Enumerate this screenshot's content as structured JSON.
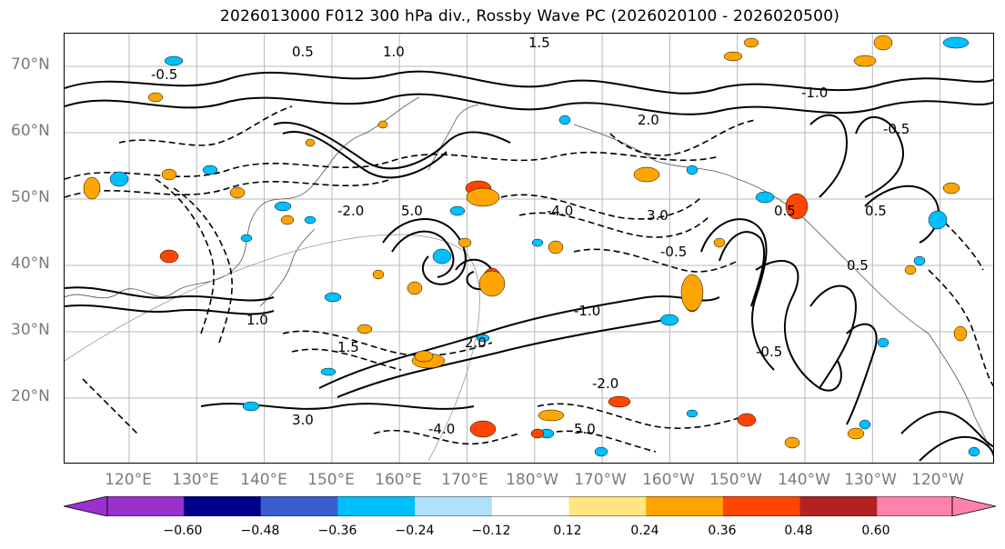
{
  "title": "2026013000 F012 300 hPa div., Rossby Wave PC (2026020100 - 2026020500)",
  "latitude_labels": [
    "70°N",
    "60°N",
    "50°N",
    "40°N",
    "30°N",
    "20°N"
  ],
  "longitude_labels": [
    "120°E",
    "130°E",
    "140°E",
    "150°E",
    "160°E",
    "170°E",
    "180°W",
    "170°W",
    "160°W",
    "150°W",
    "140°W",
    "130°W",
    "120°W"
  ],
  "colorbar": {
    "tick_labels": [
      "−0.60",
      "−0.48",
      "−0.36",
      "−0.24",
      "−0.12",
      "0.12",
      "0.24",
      "0.36",
      "0.48",
      "0.60"
    ],
    "colors": [
      "#9932cc",
      "#00008b",
      "#3a5fcd",
      "#00bfff",
      "#b0e0fa",
      "#ffffff",
      "#ffe680",
      "#ffa500",
      "#ff4500",
      "#b22222",
      "#ff82ab"
    ]
  },
  "contour_labels": [
    "-0.5",
    "0.5",
    "1.0",
    "1.5",
    "2.0",
    "-1.0",
    "-2.0",
    "5.0",
    "-4.0",
    "3.0",
    "-0.5",
    "0.5"
  ],
  "legend": {
    "shaded": "300 hPa div.",
    "contours": "Rossby Wave PC"
  }
}
